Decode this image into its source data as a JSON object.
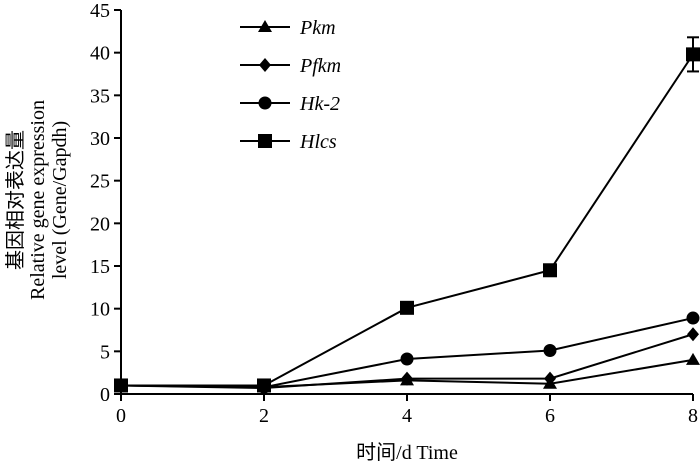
{
  "chart_data": {
    "type": "line",
    "x": [
      0,
      2,
      4,
      6,
      8
    ],
    "xlim": [
      0,
      8
    ],
    "ylim": [
      0,
      45
    ],
    "x_ticks": [
      "0",
      "2",
      "4",
      "6",
      "8"
    ],
    "y_ticks": [
      "0",
      "5",
      "10",
      "15",
      "20",
      "25",
      "30",
      "35",
      "40",
      "45"
    ],
    "xlabel": "时间/d  Time",
    "ylabel_lines": [
      "基因相对表达量",
      "Relative gene expression",
      "level (Gene/Gapdh)"
    ],
    "grid": false,
    "legend_position": "top-left",
    "series": [
      {
        "name": "Pkm",
        "marker": "triangle",
        "values": [
          1.0,
          0.8,
          1.6,
          1.2,
          4.0
        ]
      },
      {
        "name": "Pfkm",
        "marker": "diamond",
        "values": [
          1.0,
          0.7,
          1.8,
          1.8,
          7.0
        ]
      },
      {
        "name": "Hk-2",
        "marker": "circle",
        "values": [
          1.0,
          0.8,
          4.1,
          5.1,
          8.9
        ]
      },
      {
        "name": "Hlcs",
        "marker": "square",
        "values": [
          1.0,
          1.0,
          10.1,
          14.5,
          39.8
        ],
        "error": [
          0,
          0,
          0,
          0,
          2.0
        ]
      }
    ]
  }
}
